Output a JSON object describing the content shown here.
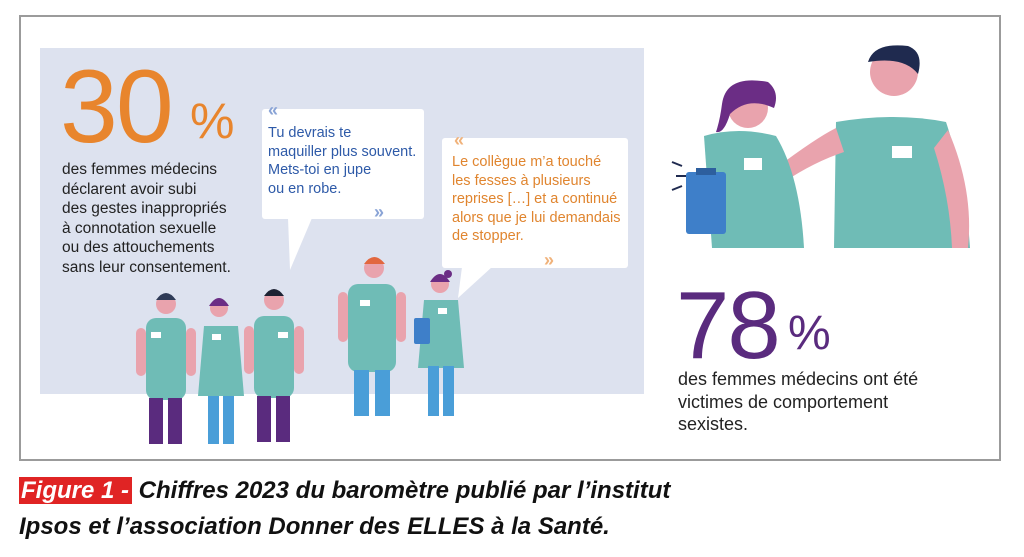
{
  "stat_left": {
    "number": "30",
    "percent_sign": "%",
    "lines": [
      "des femmes médecins",
      "déclarent avoir subi",
      "des gestes inappropriés",
      "à connotation sexuelle",
      "ou des attouchements",
      "sans leur consentement."
    ]
  },
  "quote_1": {
    "open_mark": "«",
    "lines": [
      "Tu devrais te",
      "maquiller plus souvent.",
      "Mets-toi en jupe",
      "ou en robe."
    ],
    "close_mark": "»"
  },
  "quote_2": {
    "open_mark": "«",
    "lines": [
      "Le collègue m’a touché",
      "les fesses à plusieurs",
      "reprises […] et a continué",
      "alors que je lui demandais",
      "de stopper."
    ],
    "close_mark": "»"
  },
  "stat_right": {
    "number": "78",
    "percent_sign": "%",
    "lines": [
      "des femmes médecins ont été",
      "victimes de comportement",
      "sexistes."
    ]
  },
  "caption": {
    "label": "Figure 1 -",
    "line1": " Chiffres 2023 du baromètre publié par l’institut",
    "line2": "Ipsos et l’association Donner des ELLES à la Santé."
  },
  "colors": {
    "orange": "#e8852d",
    "purple": "#5a2b7e",
    "scrubs": "#6fbcb6",
    "panel": "#dde2ef",
    "quote_blue": "#2e5aa8",
    "label_red": "#e02424"
  }
}
